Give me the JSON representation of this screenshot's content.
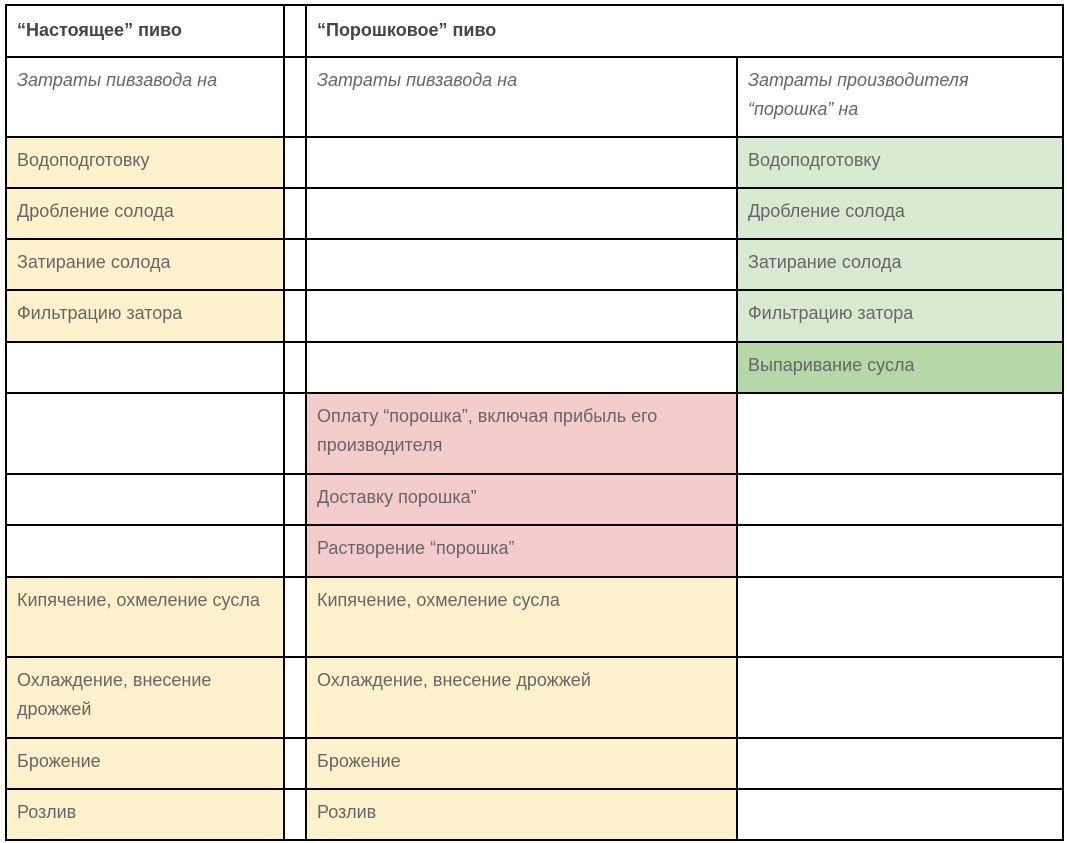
{
  "header": {
    "real_beer": "“Настоящее” пиво",
    "powder_beer": "“Порошковое” пиво"
  },
  "subheader": {
    "brewery_costs_real": "Затраты пивзавода на",
    "brewery_costs_powder": "Затраты пивзавода на",
    "producer_costs": "Затраты производителя “порошка” на"
  },
  "rows": [
    {
      "real": "Водоподготовку",
      "powder": "",
      "producer": "Водоподготовку"
    },
    {
      "real": "Дробление солода",
      "powder": "",
      "producer": "Дробление солода"
    },
    {
      "real": "Затирание солода",
      "powder": "",
      "producer": "Затирание солода"
    },
    {
      "real": "Фильтрацию затора",
      "powder": "",
      "producer": "Фильтрацию затора"
    },
    {
      "real": "",
      "powder": "",
      "producer": "Выпаривание сусла"
    },
    {
      "real": "",
      "powder": "Оплату “порошка”, включая прибыль его производителя",
      "producer": ""
    },
    {
      "real": "",
      "powder": "Доставку порошка”",
      "producer": ""
    },
    {
      "real": "",
      "powder": "Растворение “порошка”",
      "producer": ""
    },
    {
      "real": "Кипячение, охмеление сусла",
      "powder": "Кипячение, охмеление сусла",
      "producer": ""
    },
    {
      "real": "Охлаждение, внесение дрожжей",
      "powder": "Охлаждение, внесение дрожжей",
      "producer": ""
    },
    {
      "real": "Брожение",
      "powder": "Брожение",
      "producer": ""
    },
    {
      "real": "Розлив",
      "powder": "Розлив",
      "producer": ""
    }
  ],
  "colors": {
    "real_steps": "#fef2cc",
    "producer_steps": "#d9ead3",
    "producer_extra": "#b6d7a8",
    "powder_extra": "#f4cccc"
  }
}
